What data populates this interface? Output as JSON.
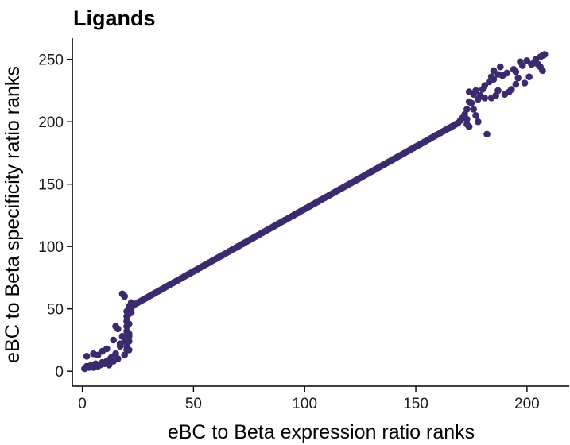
{
  "chart_data": {
    "type": "scatter",
    "title": "Ligands",
    "xlabel": "eBC to Beta expression ratio ranks",
    "ylabel": "eBC to Beta specificity ratio ranks",
    "xlim": [
      -4.5,
      219
    ],
    "ylim": [
      -12,
      267
    ],
    "x_ticks": [
      0,
      50,
      100,
      150,
      200
    ],
    "y_ticks": [
      0,
      50,
      100,
      150,
      200,
      250
    ],
    "x_tick_labels": [
      "0",
      "50",
      "100",
      "150",
      "200"
    ],
    "y_tick_labels": [
      "0",
      "50",
      "100",
      "150",
      "200",
      "250"
    ],
    "grid": false,
    "legend": "none",
    "point_color": "#3b2a6e",
    "series": [
      {
        "points": [
          [
            1,
            2
          ],
          [
            2,
            12
          ],
          [
            2,
            4
          ],
          [
            3,
            3
          ],
          [
            4,
            5
          ],
          [
            5,
            3
          ],
          [
            5,
            14
          ],
          [
            6,
            6
          ],
          [
            7,
            4
          ],
          [
            7,
            13
          ],
          [
            8,
            5
          ],
          [
            9,
            16
          ],
          [
            9,
            7
          ],
          [
            10,
            6
          ],
          [
            11,
            18
          ],
          [
            11,
            8
          ],
          [
            12,
            9
          ],
          [
            12,
            5
          ],
          [
            13,
            11
          ],
          [
            14,
            8
          ],
          [
            14,
            25
          ],
          [
            15,
            14
          ],
          [
            15,
            36
          ],
          [
            16,
            34
          ],
          [
            16,
            10
          ],
          [
            17,
            22
          ],
          [
            17,
            20
          ],
          [
            18,
            28
          ],
          [
            18,
            62
          ],
          [
            19,
            60
          ],
          [
            19,
            24
          ],
          [
            19,
            13
          ],
          [
            20,
            20
          ],
          [
            20,
            17
          ],
          [
            20,
            44
          ],
          [
            20,
            48
          ],
          [
            20,
            40
          ],
          [
            20,
            36
          ],
          [
            20,
            32
          ],
          [
            21,
            28
          ],
          [
            21,
            52
          ],
          [
            21,
            46
          ],
          [
            21,
            38
          ],
          [
            21,
            30
          ],
          [
            21,
            24
          ],
          [
            21,
            17
          ],
          [
            22,
            50
          ],
          [
            22,
            55
          ],
          [
            22,
            47
          ],
          [
            23,
            53
          ],
          [
            24,
            54
          ],
          [
            25,
            55
          ],
          [
            26,
            56
          ],
          [
            27,
            57
          ],
          [
            28,
            58
          ],
          [
            29,
            59
          ],
          [
            30,
            60
          ],
          [
            31,
            61
          ],
          [
            32,
            62
          ],
          [
            33,
            63
          ],
          [
            34,
            64
          ],
          [
            35,
            65
          ],
          [
            36,
            66
          ],
          [
            37,
            67
          ],
          [
            38,
            68
          ],
          [
            39,
            69
          ],
          [
            40,
            70
          ],
          [
            41,
            71
          ],
          [
            42,
            72
          ],
          [
            43,
            73
          ],
          [
            44,
            74
          ],
          [
            45,
            75
          ],
          [
            46,
            76
          ],
          [
            47,
            77
          ],
          [
            48,
            78
          ],
          [
            49,
            79
          ],
          [
            50,
            80
          ],
          [
            51,
            81
          ],
          [
            52,
            82
          ],
          [
            53,
            83
          ],
          [
            54,
            84
          ],
          [
            55,
            85
          ],
          [
            56,
            86
          ],
          [
            57,
            87
          ],
          [
            58,
            88
          ],
          [
            59,
            89
          ],
          [
            60,
            90
          ],
          [
            61,
            91
          ],
          [
            62,
            92
          ],
          [
            63,
            93
          ],
          [
            64,
            94
          ],
          [
            65,
            95
          ],
          [
            66,
            96
          ],
          [
            67,
            97
          ],
          [
            68,
            98
          ],
          [
            69,
            99
          ],
          [
            70,
            100
          ],
          [
            71,
            101
          ],
          [
            72,
            102
          ],
          [
            73,
            103
          ],
          [
            74,
            104
          ],
          [
            75,
            105
          ],
          [
            76,
            106
          ],
          [
            77,
            107
          ],
          [
            78,
            108
          ],
          [
            79,
            109
          ],
          [
            80,
            110
          ],
          [
            81,
            111
          ],
          [
            82,
            112
          ],
          [
            83,
            113
          ],
          [
            84,
            114
          ],
          [
            85,
            115
          ],
          [
            86,
            116
          ],
          [
            87,
            117
          ],
          [
            88,
            118
          ],
          [
            89,
            119
          ],
          [
            90,
            120
          ],
          [
            91,
            121
          ],
          [
            92,
            122
          ],
          [
            93,
            123
          ],
          [
            94,
            124
          ],
          [
            95,
            125
          ],
          [
            96,
            126
          ],
          [
            97,
            127
          ],
          [
            98,
            128
          ],
          [
            99,
            129
          ],
          [
            100,
            130
          ],
          [
            101,
            131
          ],
          [
            102,
            132
          ],
          [
            103,
            133
          ],
          [
            104,
            134
          ],
          [
            105,
            135
          ],
          [
            106,
            136
          ],
          [
            107,
            137
          ],
          [
            108,
            138
          ],
          [
            109,
            139
          ],
          [
            110,
            140
          ],
          [
            111,
            141
          ],
          [
            112,
            142
          ],
          [
            113,
            143
          ],
          [
            114,
            144
          ],
          [
            115,
            145
          ],
          [
            116,
            146
          ],
          [
            117,
            147
          ],
          [
            118,
            148
          ],
          [
            119,
            149
          ],
          [
            120,
            150
          ],
          [
            121,
            151
          ],
          [
            122,
            152
          ],
          [
            123,
            153
          ],
          [
            124,
            154
          ],
          [
            125,
            155
          ],
          [
            126,
            156
          ],
          [
            127,
            157
          ],
          [
            128,
            158
          ],
          [
            129,
            159
          ],
          [
            130,
            160
          ],
          [
            131,
            161
          ],
          [
            132,
            162
          ],
          [
            133,
            163
          ],
          [
            134,
            164
          ],
          [
            135,
            165
          ],
          [
            136,
            166
          ],
          [
            137,
            167
          ],
          [
            138,
            168
          ],
          [
            139,
            169
          ],
          [
            140,
            170
          ],
          [
            141,
            171
          ],
          [
            142,
            172
          ],
          [
            143,
            173
          ],
          [
            144,
            174
          ],
          [
            145,
            175
          ],
          [
            146,
            176
          ],
          [
            147,
            177
          ],
          [
            148,
            178
          ],
          [
            149,
            179
          ],
          [
            150,
            180
          ],
          [
            151,
            181
          ],
          [
            152,
            182
          ],
          [
            153,
            183
          ],
          [
            154,
            184
          ],
          [
            155,
            185
          ],
          [
            156,
            186
          ],
          [
            157,
            187
          ],
          [
            158,
            188
          ],
          [
            159,
            189
          ],
          [
            160,
            190
          ],
          [
            161,
            191
          ],
          [
            162,
            192
          ],
          [
            163,
            193
          ],
          [
            164,
            194
          ],
          [
            165,
            195
          ],
          [
            166,
            196
          ],
          [
            167,
            197
          ],
          [
            168,
            198
          ],
          [
            169,
            199
          ],
          [
            170,
            201
          ],
          [
            171,
            203
          ],
          [
            172,
            206
          ],
          [
            173,
            210
          ],
          [
            173,
            202
          ],
          [
            173,
            198
          ],
          [
            174,
            216
          ],
          [
            174,
            224
          ],
          [
            174,
            196
          ],
          [
            175,
            215
          ],
          [
            176,
            222
          ],
          [
            176,
            210
          ],
          [
            177,
            225
          ],
          [
            177,
            205
          ],
          [
            178,
            200
          ],
          [
            178,
            218
          ],
          [
            179,
            221
          ],
          [
            180,
            226
          ],
          [
            181,
            229
          ],
          [
            181,
            219
          ],
          [
            182,
            190
          ],
          [
            183,
            232
          ],
          [
            184,
            236
          ],
          [
            184,
            219
          ],
          [
            185,
            241
          ],
          [
            185,
            234
          ],
          [
            186,
            221
          ],
          [
            187,
            238
          ],
          [
            187,
            225
          ],
          [
            188,
            244
          ],
          [
            189,
            237
          ],
          [
            190,
            222
          ],
          [
            191,
            239
          ],
          [
            192,
            224
          ],
          [
            193,
            226
          ],
          [
            194,
            242
          ],
          [
            195,
            240
          ],
          [
            195,
            230
          ],
          [
            196,
            235
          ],
          [
            197,
            248
          ],
          [
            198,
            245
          ],
          [
            199,
            231
          ],
          [
            200,
            249
          ],
          [
            201,
            236
          ],
          [
            202,
            246
          ],
          [
            203,
            247
          ],
          [
            204,
            250
          ],
          [
            205,
            246
          ],
          [
            206,
            252
          ],
          [
            206,
            244
          ],
          [
            207,
            253
          ],
          [
            207,
            241
          ],
          [
            208,
            254
          ]
        ]
      }
    ]
  }
}
